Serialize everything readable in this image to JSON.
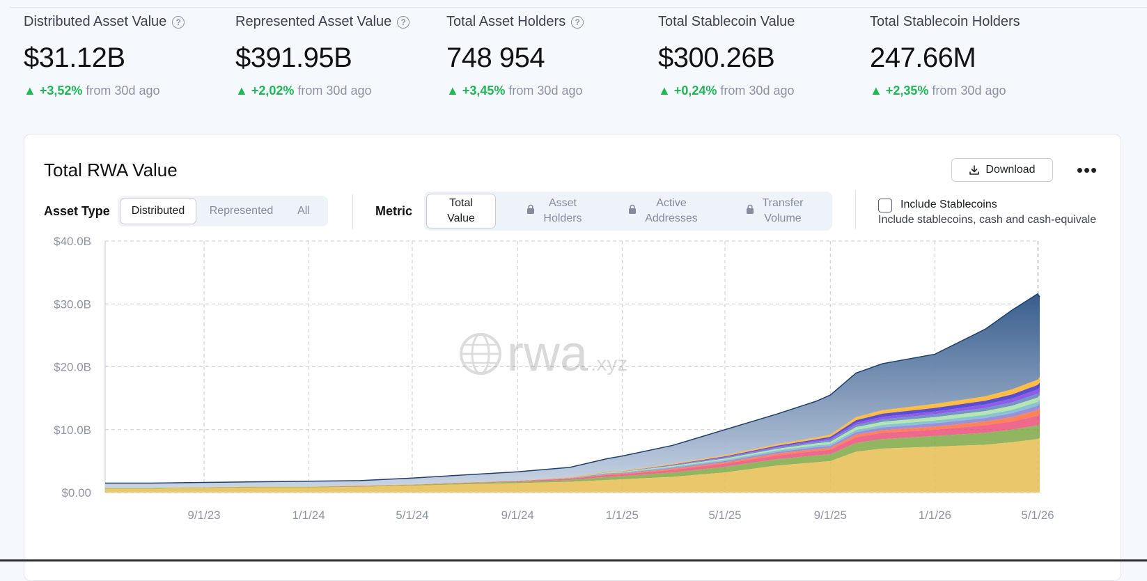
{
  "stats": [
    {
      "label": "Distributed Asset Value",
      "help": true,
      "value": "$31.12B",
      "change": "+3,52%",
      "suffix": "from 30d ago"
    },
    {
      "label": "Represented Asset Value",
      "help": true,
      "value": "$391.95B",
      "change": "+2,02%",
      "suffix": "from 30d ago"
    },
    {
      "label": "Total Asset Holders",
      "help": true,
      "value": "748 954",
      "change": "+3,45%",
      "suffix": "from 30d ago"
    },
    {
      "label": "Total Stablecoin Value",
      "help": false,
      "value": "$300.26B",
      "change": "+0,24%",
      "suffix": "from 30d ago"
    },
    {
      "label": "Total Stablecoin Holders",
      "help": false,
      "value": "247.66M",
      "change": "+2,35%",
      "suffix": "from 30d ago"
    }
  ],
  "card": {
    "title": "Total RWA Value",
    "download_label": "Download",
    "more_label": "•••"
  },
  "filters": {
    "asset_type_label": "Asset Type",
    "asset_type_options": [
      "Distributed",
      "Represented",
      "All"
    ],
    "asset_type_selected": "Distributed",
    "metric_label": "Metric",
    "metric_options": [
      {
        "line1": "Total",
        "line2": "Value",
        "locked": false
      },
      {
        "line1": "Asset",
        "line2": "Holders",
        "locked": true
      },
      {
        "line1": "Active",
        "line2": "Addresses",
        "locked": true
      },
      {
        "line1": "Transfer",
        "line2": "Volume",
        "locked": true
      }
    ],
    "metric_selected": "Total Value",
    "stablecoin_label": "Include Stablecoins",
    "stablecoin_checked": false,
    "stablecoin_desc": "Include stablecoins, cash and cash-equivale"
  },
  "watermark": {
    "main": "rwa",
    "suffix": ".xyz"
  },
  "colors": {
    "up": "#1fb954",
    "series": [
      "#2e5587",
      "#e8bd52",
      "#7ea844",
      "#ec4e7a",
      "#ff6d3a",
      "#8a7cd4",
      "#75b8c9",
      "#a8e2a4",
      "#5d7fc0",
      "#7b3ee6",
      "#3b2fc7",
      "#ffb020"
    ]
  },
  "chart_data": {
    "type": "area",
    "stacked": true,
    "y_ticks": [
      "$40.0B",
      "$30.0B",
      "$20.0B",
      "$10.0B",
      "$0.00"
    ],
    "ylim": [
      0,
      40
    ],
    "x_ticks": [
      "9/1/23",
      "1/1/24",
      "5/1/24",
      "9/1/24",
      "1/1/25",
      "5/1/25",
      "9/1/25",
      "1/1/26",
      "5/1/26"
    ],
    "x": [
      "5/1/23",
      "7/1/23",
      "9/1/23",
      "11/1/23",
      "1/1/24",
      "3/1/24",
      "5/1/24",
      "7/1/24",
      "9/1/24",
      "11/1/24",
      "12/15/24",
      "1/1/25",
      "3/1/25",
      "5/1/25",
      "7/1/25",
      "8/15/25",
      "9/1/25",
      "10/1/25",
      "11/1/25",
      "1/1/26",
      "3/1/26",
      "4/1/26",
      "5/1/26",
      "5/15/26"
    ],
    "total": [
      1.5,
      1.5,
      1.6,
      1.7,
      1.8,
      1.9,
      2.3,
      2.8,
      3.3,
      4.0,
      5.4,
      5.8,
      7.5,
      10.0,
      12.5,
      14.5,
      15.5,
      19.0,
      20.5,
      22.0,
      26.0,
      29.0,
      31.6,
      31.1
    ],
    "series": [
      {
        "values": [
          0.6,
          0.6,
          0.7,
          0.8,
          0.8,
          0.9,
          1.1,
          1.3,
          1.5,
          1.7,
          2.0,
          2.1,
          2.5,
          3.2,
          4.3,
          4.8,
          5.0,
          6.5,
          7.0,
          7.3,
          7.6,
          8.0,
          8.5,
          8.7
        ]
      },
      {
        "values": [
          0.1,
          0.1,
          0.1,
          0.1,
          0.1,
          0.1,
          0.1,
          0.2,
          0.2,
          0.3,
          0.5,
          0.5,
          0.7,
          0.9,
          1.0,
          1.1,
          1.1,
          1.4,
          1.5,
          1.7,
          1.9,
          2.0,
          2.2,
          2.3
        ]
      },
      {
        "values": [
          0,
          0,
          0,
          0,
          0,
          0.05,
          0.05,
          0.05,
          0.1,
          0.2,
          0.3,
          0.3,
          0.4,
          0.5,
          0.6,
          0.7,
          0.7,
          0.9,
          1.0,
          1.0,
          1.2,
          1.3,
          1.5,
          1.6
        ]
      },
      {
        "values": [
          0,
          0,
          0,
          0,
          0,
          0,
          0,
          0,
          0,
          0.05,
          0.1,
          0.1,
          0.2,
          0.2,
          0.3,
          0.3,
          0.3,
          0.4,
          0.4,
          0.5,
          0.6,
          0.7,
          0.9,
          0.9
        ]
      },
      {
        "values": [
          0,
          0,
          0,
          0,
          0,
          0,
          0,
          0,
          0.05,
          0.05,
          0.1,
          0.1,
          0.15,
          0.2,
          0.25,
          0.3,
          0.3,
          0.4,
          0.45,
          0.5,
          0.55,
          0.6,
          0.7,
          0.7
        ]
      },
      {
        "values": [
          0,
          0,
          0,
          0,
          0,
          0,
          0,
          0,
          0,
          0.05,
          0.1,
          0.1,
          0.15,
          0.2,
          0.25,
          0.3,
          0.3,
          0.35,
          0.4,
          0.45,
          0.5,
          0.55,
          0.6,
          0.6
        ]
      },
      {
        "values": [
          0,
          0,
          0,
          0,
          0,
          0,
          0,
          0,
          0,
          0,
          0.1,
          0.1,
          0.15,
          0.2,
          0.25,
          0.3,
          0.35,
          0.45,
          0.5,
          0.55,
          0.6,
          0.65,
          0.7,
          0.7
        ]
      },
      {
        "values": [
          0,
          0,
          0,
          0,
          0,
          0,
          0,
          0,
          0,
          0,
          0.05,
          0.05,
          0.1,
          0.15,
          0.2,
          0.25,
          0.3,
          0.35,
          0.4,
          0.45,
          0.5,
          0.55,
          0.6,
          0.6
        ]
      },
      {
        "values": [
          0,
          0,
          0,
          0,
          0,
          0,
          0,
          0,
          0,
          0,
          0,
          0,
          0.05,
          0.1,
          0.15,
          0.2,
          0.25,
          0.35,
          0.4,
          0.45,
          0.55,
          0.6,
          0.7,
          0.7
        ]
      },
      {
        "values": [
          0,
          0,
          0,
          0,
          0,
          0,
          0,
          0,
          0,
          0,
          0,
          0,
          0.05,
          0.1,
          0.15,
          0.2,
          0.25,
          0.4,
          0.5,
          0.55,
          0.6,
          0.65,
          0.7,
          0.7
        ]
      },
      {
        "values": [
          0,
          0,
          0,
          0,
          0,
          0,
          0,
          0,
          0,
          0,
          0,
          0,
          0.05,
          0.1,
          0.1,
          0.15,
          0.2,
          0.3,
          0.35,
          0.4,
          0.45,
          0.5,
          0.55,
          0.55
        ]
      },
      {
        "values": [
          0.05,
          0.05,
          0.05,
          0.05,
          0.05,
          0.05,
          0.05,
          0.05,
          0.05,
          0.1,
          0.1,
          0.1,
          0.1,
          0.1,
          0.15,
          0.15,
          0.15,
          0.2,
          0.2,
          0.25,
          0.25,
          0.3,
          0.3,
          0.3
        ]
      }
    ],
    "grid": true,
    "legend": "none"
  }
}
